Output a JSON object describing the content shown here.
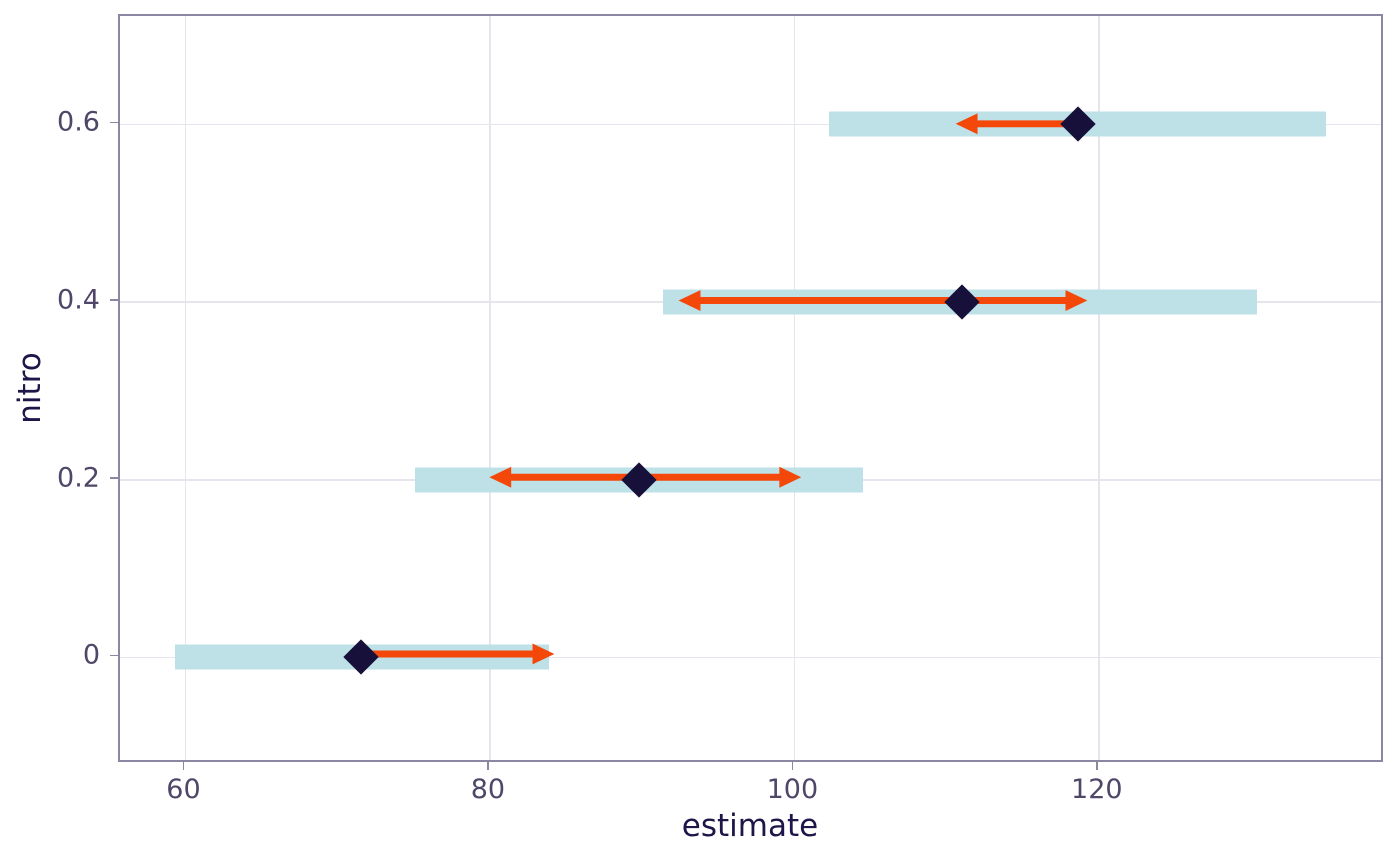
{
  "chart_data": {
    "type": "bar",
    "subtype": "horizontal-interval-dumbbell",
    "title": "",
    "xlabel": "estimate",
    "ylabel": "nitro",
    "x_ticks": [
      60,
      80,
      100,
      120
    ],
    "x_tick_labels": [
      "60",
      "80",
      "100",
      "120"
    ],
    "y_ticks": [
      0,
      0.2,
      0.4,
      0.6
    ],
    "y_tick_labels": [
      "0",
      "0.2",
      "0.4",
      "0.6"
    ],
    "xlim": [
      55.7,
      138.8
    ],
    "ylim": [
      -0.12,
      0.722
    ],
    "grid": true,
    "legend": "none",
    "rows": [
      {
        "nitro": "0.6",
        "y": 0.6,
        "outer_interval": [
          102.3,
          134.9
        ],
        "arrow_interval": [
          110.8,
          118.6
        ],
        "arrow_heads": [
          "left"
        ],
        "estimate": 118.6
      },
      {
        "nitro": "0.4",
        "y": 0.4,
        "outer_interval": [
          91.4,
          130.4
        ],
        "arrow_interval": [
          92.5,
          119.5
        ],
        "arrow_heads": [
          "left",
          "right"
        ],
        "estimate": 111.0
      },
      {
        "nitro": "0.2",
        "y": 0.2,
        "outer_interval": [
          75.1,
          104.5
        ],
        "arrow_interval": [
          80.0,
          100.6
        ],
        "arrow_heads": [
          "left",
          "right"
        ],
        "estimate": 89.8
      },
      {
        "nitro": "0",
        "y": 0.0,
        "outer_interval": [
          59.3,
          83.9
        ],
        "arrow_interval": [
          71.5,
          84.3
        ],
        "arrow_heads": [
          "right"
        ],
        "estimate": 71.5
      }
    ],
    "colors": {
      "outer_interval": "#bee1e7",
      "arrow": "#f4470a",
      "estimate_point": "#17103a",
      "panel_border": "#8c86a2",
      "gridline": "#e6e4ed",
      "tick_text": "#4f4668",
      "axis_title_text": "#1e1649"
    }
  }
}
